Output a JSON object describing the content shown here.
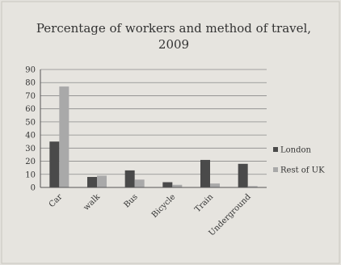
{
  "chart_data": {
    "type": "bar",
    "title_line1": "Percentage of workers and method of travel,",
    "title_line2": "2009",
    "categories": [
      "Car",
      "walk",
      "Bus",
      "Bicycle",
      "Train",
      "Underground"
    ],
    "series": [
      {
        "name": "London",
        "values": [
          35,
          8,
          13,
          4,
          21,
          18
        ],
        "color": "#4a4a4a"
      },
      {
        "name": "Rest of UK",
        "values": [
          77,
          9,
          6,
          2,
          3,
          1
        ],
        "color": "#a9a9a9"
      }
    ],
    "ylim": [
      0,
      90
    ],
    "yticks": [
      0,
      10,
      20,
      30,
      40,
      50,
      60,
      70,
      80,
      90
    ],
    "legend_position": "right",
    "grid": true
  }
}
